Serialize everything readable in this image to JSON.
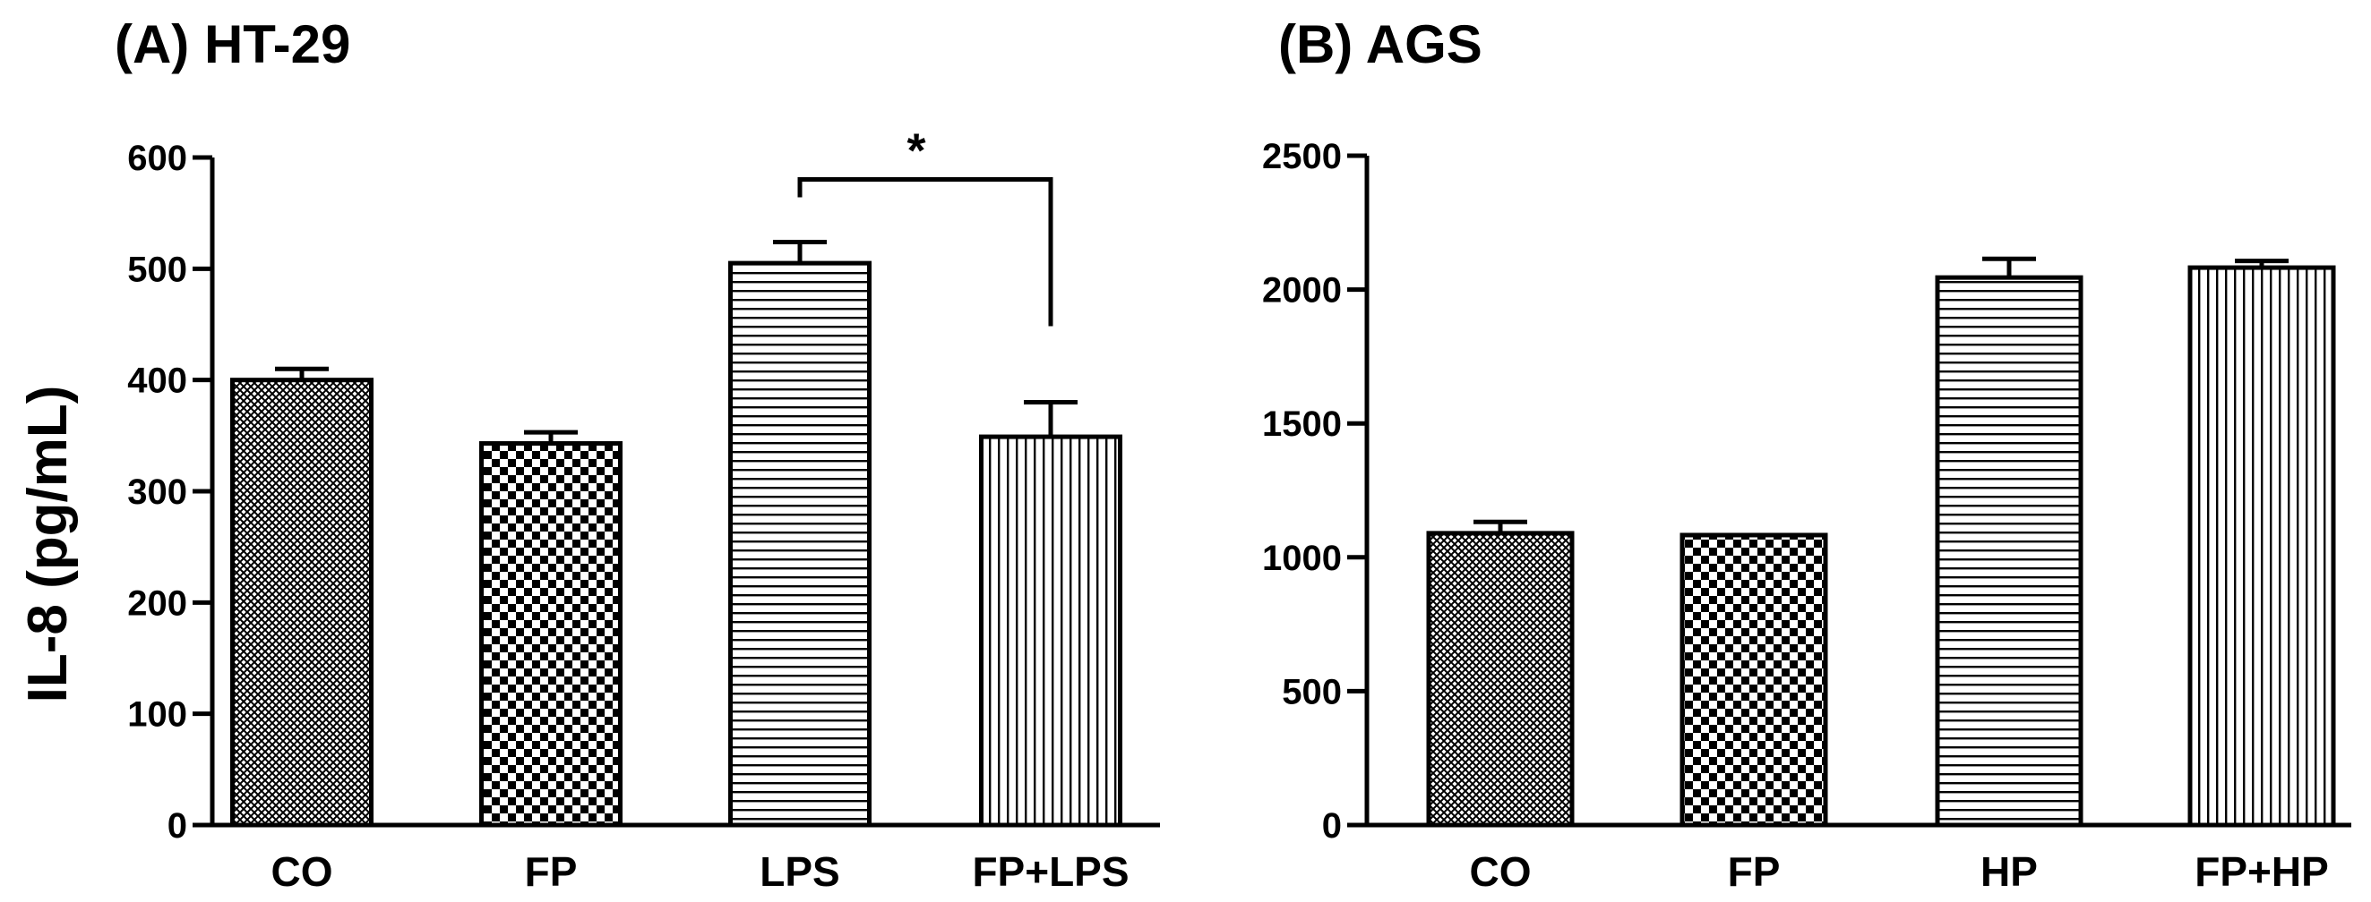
{
  "chart_data": [
    {
      "type": "bar",
      "title": "(A) HT-29",
      "xlabel": "",
      "ylabel": "IL-8 (pg/mL)",
      "ylim": [
        0,
        600
      ],
      "yticks": [
        "0",
        "100",
        "200",
        "300",
        "400",
        "500",
        "600"
      ],
      "categories": [
        "CO",
        "FP",
        "LPS",
        "FP+LPS"
      ],
      "values": [
        400,
        343,
        505,
        349
      ],
      "errors": [
        10,
        10,
        19,
        31
      ],
      "patterns": [
        "crosshatch",
        "checker",
        "horizontal",
        "vertical"
      ],
      "annotations": [
        {
          "text": "*",
          "between": [
            "LPS",
            "FP+LPS"
          ]
        }
      ],
      "grid": false,
      "legend": "none"
    },
    {
      "type": "bar",
      "title": "(B) AGS",
      "xlabel": "",
      "ylabel": "",
      "ylim": [
        0,
        2500
      ],
      "yticks": [
        "0",
        "500",
        "1000",
        "1500",
        "2000",
        "2500"
      ],
      "categories": [
        "CO",
        "FP",
        "HP",
        "FP+HP"
      ],
      "values": [
        1090,
        1083,
        2045,
        2082
      ],
      "errors": [
        42,
        0,
        70,
        25
      ],
      "patterns": [
        "crosshatch",
        "checker",
        "horizontal",
        "vertical"
      ],
      "annotations": [],
      "grid": false,
      "legend": "none"
    }
  ],
  "colors": {
    "ink": "#000000",
    "background": "#ffffff"
  }
}
